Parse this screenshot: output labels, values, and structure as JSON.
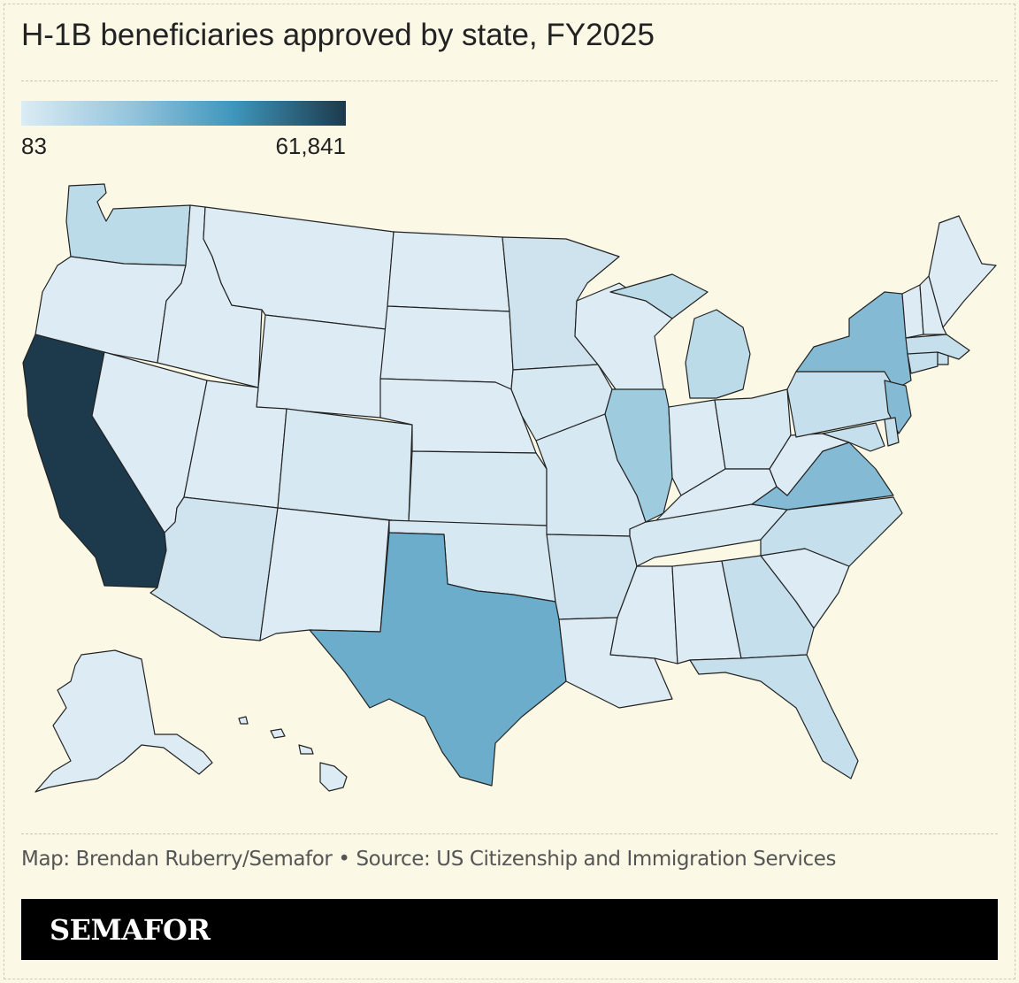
{
  "title": "H-1B beneficiaries approved by state, FY2025",
  "legend": {
    "min_label": "83",
    "max_label": "61,841",
    "min_value": 83,
    "max_value": 61841,
    "color_low": "#dbecf4",
    "color_high": "#1c3a4c"
  },
  "credit": "Map: Brendan Ruberry/Semafor • Source: US Citizenship and Immigration Services",
  "brand": "SEMAFOR",
  "colors": {
    "background": "#fbf9e6",
    "footer": "#000000",
    "state_border": "#222222"
  }
}
